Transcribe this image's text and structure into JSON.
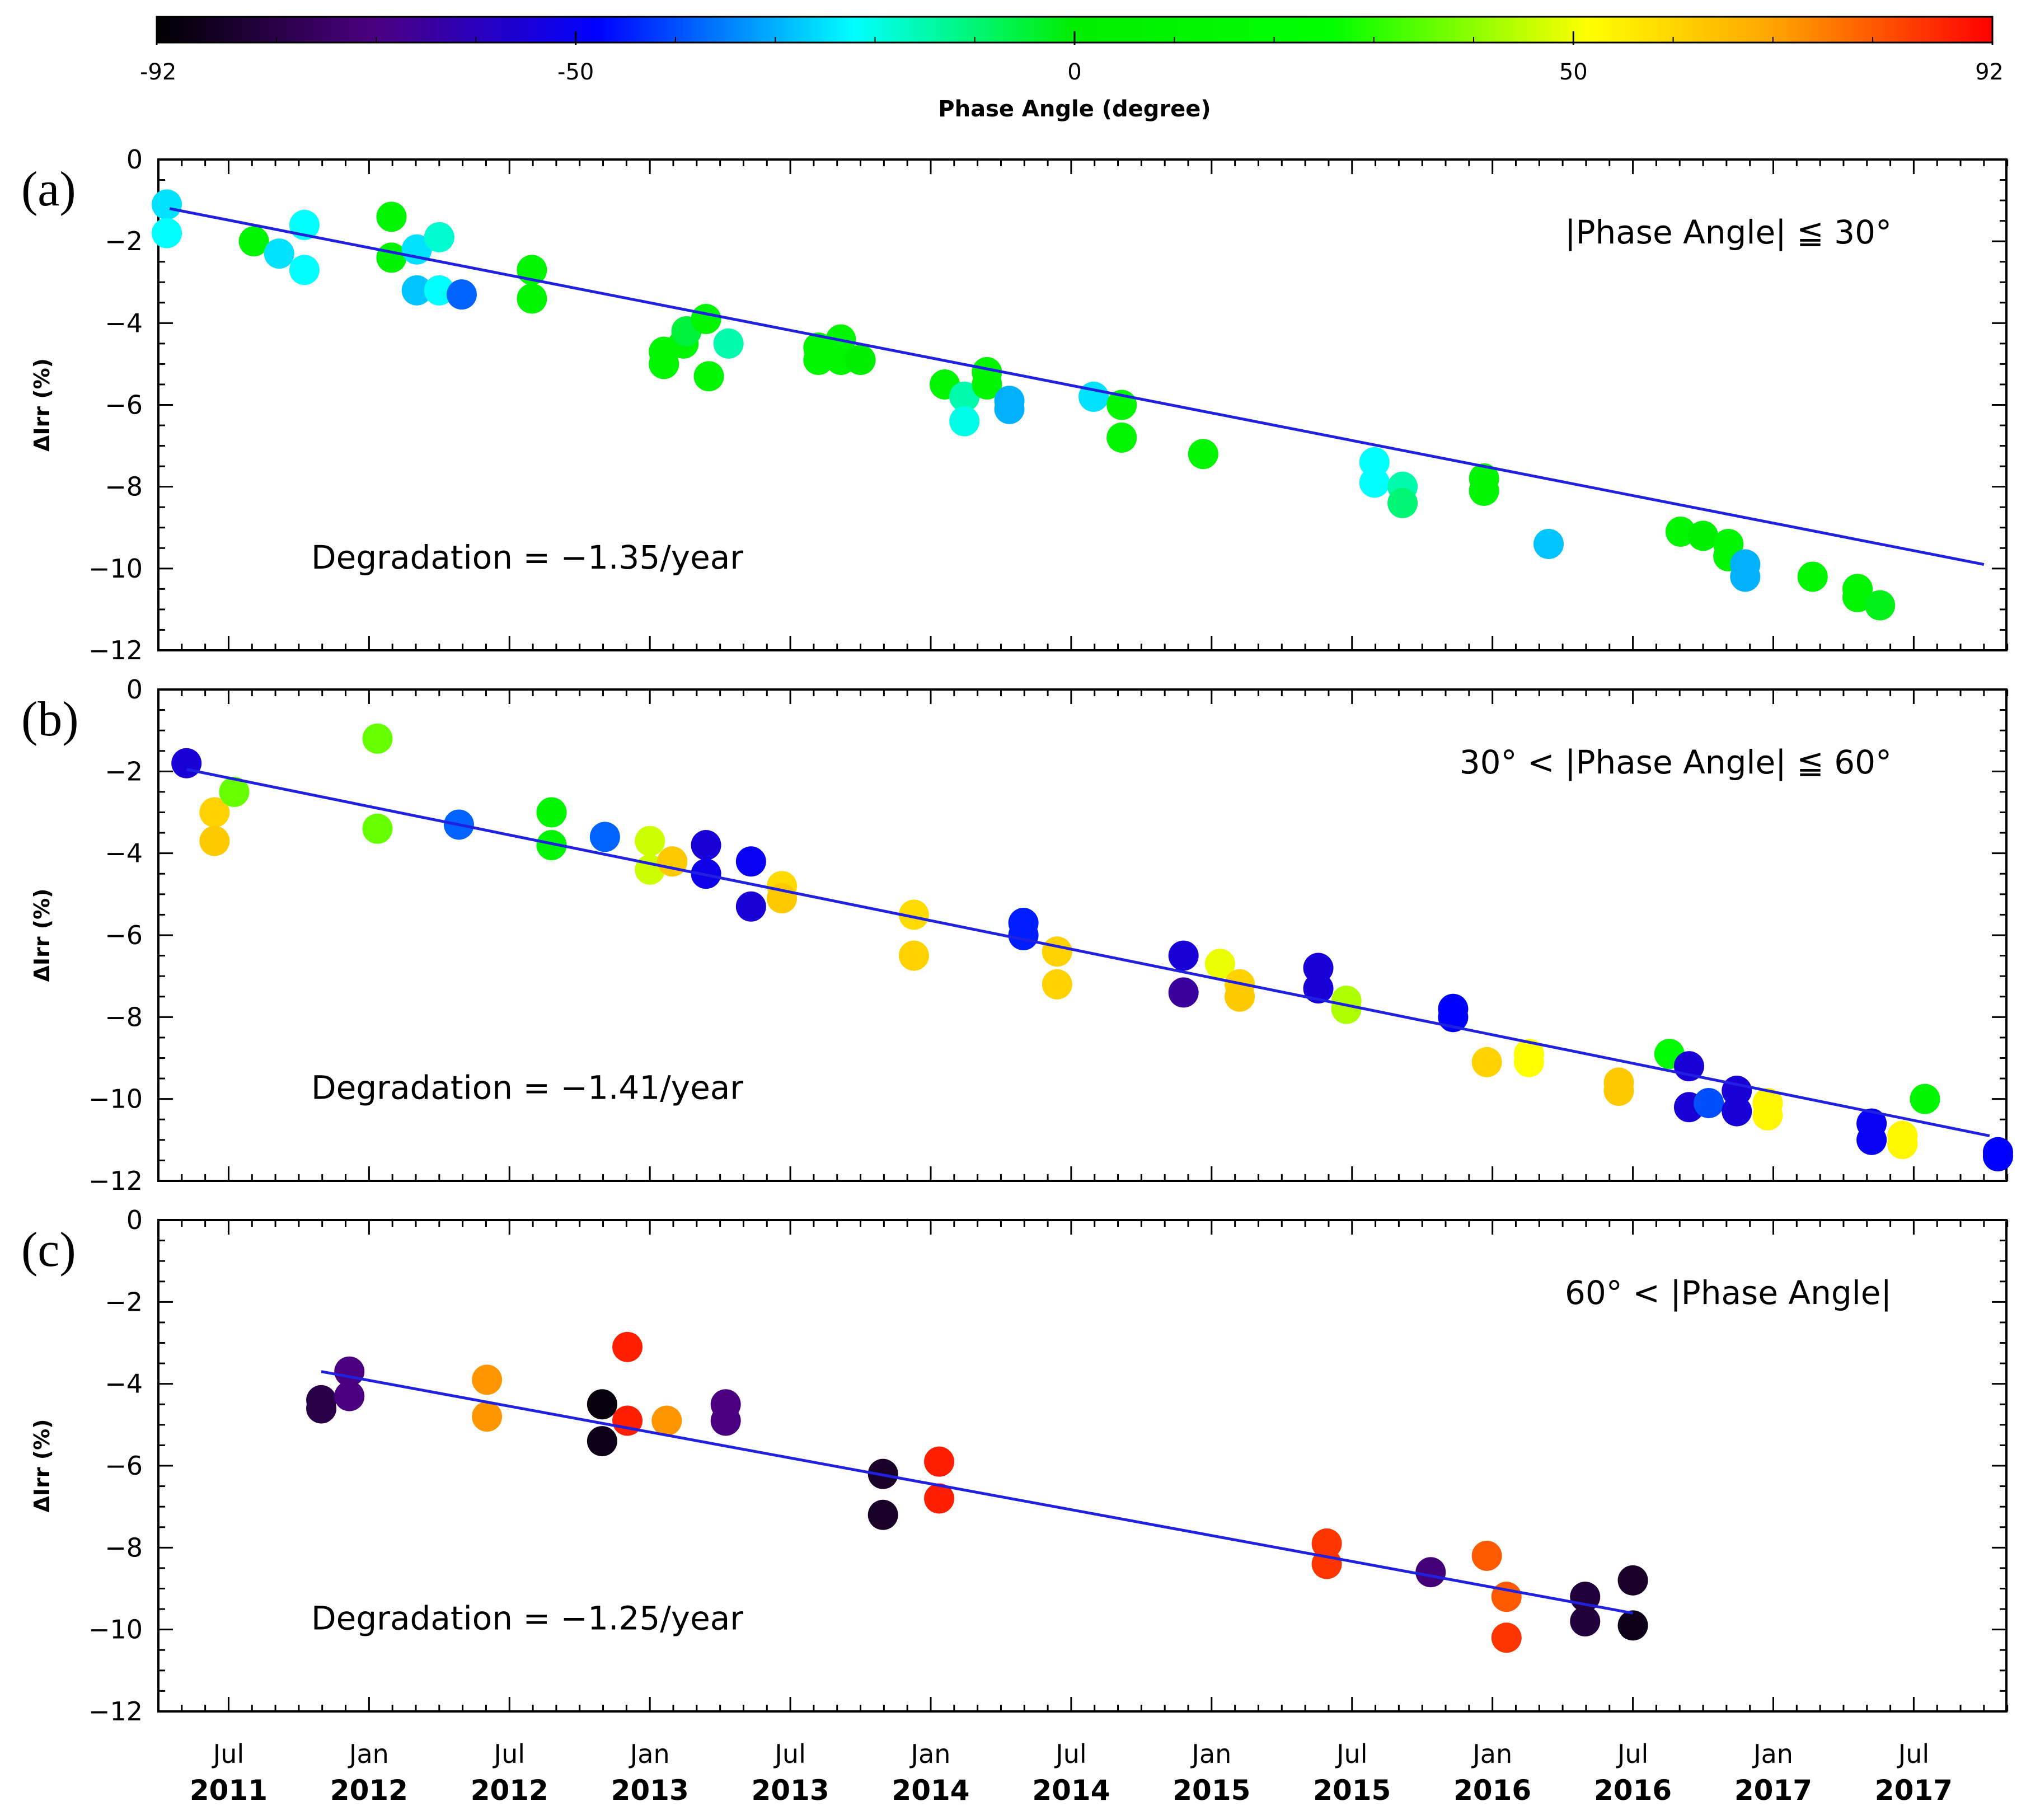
{
  "colorbar": {
    "label": "Phase Angle (degree)",
    "ticks": [
      "-92",
      "-50",
      "0",
      "50",
      "92"
    ],
    "tick_values": [
      -92,
      -50,
      0,
      50,
      92
    ],
    "range": [
      -92,
      92
    ]
  },
  "x_axis": {
    "tick_labels": [
      {
        "month": "Jul",
        "year": "2011",
        "t": 2011.5
      },
      {
        "month": "Jan",
        "year": "2012",
        "t": 2012.0
      },
      {
        "month": "Jul",
        "year": "2012",
        "t": 2012.5
      },
      {
        "month": "Jan",
        "year": "2013",
        "t": 2013.0
      },
      {
        "month": "Jul",
        "year": "2013",
        "t": 2013.5
      },
      {
        "month": "Jan",
        "year": "2014",
        "t": 2014.0
      },
      {
        "month": "Jul",
        "year": "2014",
        "t": 2014.5
      },
      {
        "month": "Jan",
        "year": "2015",
        "t": 2015.0
      },
      {
        "month": "Jul",
        "year": "2015",
        "t": 2015.5
      },
      {
        "month": "Jan",
        "year": "2016",
        "t": 2016.0
      },
      {
        "month": "Jul",
        "year": "2016",
        "t": 2016.5
      },
      {
        "month": "Jan",
        "year": "2017",
        "t": 2017.0
      },
      {
        "month": "Jul",
        "year": "2017",
        "t": 2017.5
      }
    ],
    "xlim": [
      2011.25,
      2017.83
    ]
  },
  "chart_data": [
    {
      "type": "scatter",
      "panel_label": "(a)",
      "condition": "|Phase Angle| ≦ 30°",
      "ylabel": "ΔIrr (%)",
      "degradation_text": "Degradation = −1.35/year",
      "ylim": [
        -12,
        0
      ],
      "yticks": [
        0,
        -2,
        -4,
        -6,
        -8,
        -10,
        -12
      ],
      "xlim": [
        2011.25,
        2017.83
      ],
      "fit_line": {
        "x": [
          2011.29,
          2017.75
        ],
        "y": [
          -1.2,
          -9.9
        ]
      },
      "points": [
        {
          "x": 2011.28,
          "y": -1.1,
          "phase": -25
        },
        {
          "x": 2011.28,
          "y": -1.8,
          "phase": -22
        },
        {
          "x": 2011.59,
          "y": -2.0,
          "phase": 10
        },
        {
          "x": 2011.68,
          "y": -2.3,
          "phase": -25
        },
        {
          "x": 2011.77,
          "y": -1.6,
          "phase": -22
        },
        {
          "x": 2011.77,
          "y": -2.7,
          "phase": -22
        },
        {
          "x": 2012.08,
          "y": -1.4,
          "phase": 10
        },
        {
          "x": 2012.08,
          "y": -2.4,
          "phase": 8
        },
        {
          "x": 2012.17,
          "y": -2.2,
          "phase": -25
        },
        {
          "x": 2012.17,
          "y": -3.2,
          "phase": -28
        },
        {
          "x": 2012.25,
          "y": -1.9,
          "phase": -18
        },
        {
          "x": 2012.25,
          "y": -3.2,
          "phase": -22
        },
        {
          "x": 2012.33,
          "y": -3.3,
          "phase": -38
        },
        {
          "x": 2012.58,
          "y": -2.7,
          "phase": 10
        },
        {
          "x": 2012.58,
          "y": -3.4,
          "phase": 10
        },
        {
          "x": 2013.05,
          "y": -4.7,
          "phase": 10
        },
        {
          "x": 2013.05,
          "y": -5.0,
          "phase": 12
        },
        {
          "x": 2013.12,
          "y": -4.5,
          "phase": 10
        },
        {
          "x": 2013.13,
          "y": -4.2,
          "phase": -5
        },
        {
          "x": 2013.2,
          "y": -3.9,
          "phase": 10
        },
        {
          "x": 2013.21,
          "y": -5.3,
          "phase": 10
        },
        {
          "x": 2013.28,
          "y": -4.5,
          "phase": -15
        },
        {
          "x": 2013.6,
          "y": -4.6,
          "phase": 10
        },
        {
          "x": 2013.6,
          "y": -4.9,
          "phase": 10
        },
        {
          "x": 2013.68,
          "y": -4.4,
          "phase": 10
        },
        {
          "x": 2013.68,
          "y": -4.9,
          "phase": 10
        },
        {
          "x": 2013.75,
          "y": -4.9,
          "phase": 0
        },
        {
          "x": 2014.05,
          "y": -5.5,
          "phase": 10
        },
        {
          "x": 2014.12,
          "y": -5.8,
          "phase": -15
        },
        {
          "x": 2014.12,
          "y": -6.4,
          "phase": -20
        },
        {
          "x": 2014.2,
          "y": -5.2,
          "phase": 10
        },
        {
          "x": 2014.2,
          "y": -5.5,
          "phase": 10
        },
        {
          "x": 2014.28,
          "y": -5.9,
          "phase": -30
        },
        {
          "x": 2014.28,
          "y": -6.1,
          "phase": -30
        },
        {
          "x": 2014.58,
          "y": -5.8,
          "phase": -25
        },
        {
          "x": 2014.68,
          "y": -6.0,
          "phase": 10
        },
        {
          "x": 2014.68,
          "y": -6.8,
          "phase": 10
        },
        {
          "x": 2014.97,
          "y": -7.2,
          "phase": 10
        },
        {
          "x": 2015.58,
          "y": -7.4,
          "phase": -22
        },
        {
          "x": 2015.58,
          "y": -7.9,
          "phase": -22
        },
        {
          "x": 2015.68,
          "y": -8.0,
          "phase": -15
        },
        {
          "x": 2015.68,
          "y": -8.4,
          "phase": -10
        },
        {
          "x": 2015.97,
          "y": -7.8,
          "phase": 10
        },
        {
          "x": 2015.97,
          "y": -8.1,
          "phase": 10
        },
        {
          "x": 2016.2,
          "y": -9.4,
          "phase": -28
        },
        {
          "x": 2016.67,
          "y": -9.1,
          "phase": 10
        },
        {
          "x": 2016.75,
          "y": -9.2,
          "phase": 0
        },
        {
          "x": 2016.84,
          "y": -9.4,
          "phase": 10
        },
        {
          "x": 2016.84,
          "y": -9.7,
          "phase": 10
        },
        {
          "x": 2016.9,
          "y": -9.9,
          "phase": -30
        },
        {
          "x": 2016.9,
          "y": -10.2,
          "phase": -30
        },
        {
          "x": 2017.14,
          "y": -10.2,
          "phase": 10
        },
        {
          "x": 2017.3,
          "y": -10.5,
          "phase": 10
        },
        {
          "x": 2017.3,
          "y": -10.7,
          "phase": 10
        },
        {
          "x": 2017.38,
          "y": -10.9,
          "phase": -2
        }
      ]
    },
    {
      "type": "scatter",
      "panel_label": "(b)",
      "condition": "30° < |Phase Angle| ≦ 60°",
      "ylabel": "ΔIrr (%)",
      "degradation_text": "Degradation = −1.41/year",
      "ylim": [
        -12,
        0
      ],
      "yticks": [
        0,
        -2,
        -4,
        -6,
        -8,
        -10,
        -12
      ],
      "xlim": [
        2011.25,
        2017.83
      ],
      "fit_line": {
        "x": [
          2011.35,
          2017.77
        ],
        "y": [
          -1.95,
          -10.9
        ]
      },
      "points": [
        {
          "x": 2011.35,
          "y": -1.8,
          "phase": -55
        },
        {
          "x": 2011.45,
          "y": -3.0,
          "phase": 60
        },
        {
          "x": 2011.45,
          "y": -3.7,
          "phase": 62
        },
        {
          "x": 2011.52,
          "y": -2.5,
          "phase": 35
        },
        {
          "x": 2012.03,
          "y": -1.2,
          "phase": 35
        },
        {
          "x": 2012.03,
          "y": -3.4,
          "phase": 35
        },
        {
          "x": 2012.32,
          "y": -3.3,
          "phase": -38
        },
        {
          "x": 2012.65,
          "y": -3.0,
          "phase": 10
        },
        {
          "x": 2012.65,
          "y": -3.8,
          "phase": 10
        },
        {
          "x": 2012.84,
          "y": -3.6,
          "phase": -38
        },
        {
          "x": 2013.0,
          "y": -3.7,
          "phase": 45
        },
        {
          "x": 2013.0,
          "y": -4.4,
          "phase": 45
        },
        {
          "x": 2013.08,
          "y": -4.2,
          "phase": 62
        },
        {
          "x": 2013.2,
          "y": -3.8,
          "phase": -55
        },
        {
          "x": 2013.2,
          "y": -4.5,
          "phase": -52
        },
        {
          "x": 2013.36,
          "y": -4.2,
          "phase": -50
        },
        {
          "x": 2013.36,
          "y": -5.3,
          "phase": -55
        },
        {
          "x": 2013.47,
          "y": -4.8,
          "phase": 58
        },
        {
          "x": 2013.47,
          "y": -5.1,
          "phase": 62
        },
        {
          "x": 2013.94,
          "y": -5.5,
          "phase": 58
        },
        {
          "x": 2013.94,
          "y": -6.5,
          "phase": 60
        },
        {
          "x": 2014.33,
          "y": -5.7,
          "phase": -45
        },
        {
          "x": 2014.33,
          "y": -6.0,
          "phase": -45
        },
        {
          "x": 2014.45,
          "y": -6.4,
          "phase": 60
        },
        {
          "x": 2014.45,
          "y": -7.2,
          "phase": 60
        },
        {
          "x": 2014.9,
          "y": -6.5,
          "phase": -55
        },
        {
          "x": 2014.9,
          "y": -7.4,
          "phase": -65
        },
        {
          "x": 2015.03,
          "y": -6.7,
          "phase": 48
        },
        {
          "x": 2015.1,
          "y": -7.2,
          "phase": 60
        },
        {
          "x": 2015.1,
          "y": -7.5,
          "phase": 62
        },
        {
          "x": 2015.38,
          "y": -6.8,
          "phase": -55
        },
        {
          "x": 2015.38,
          "y": -7.3,
          "phase": -55
        },
        {
          "x": 2015.48,
          "y": -7.6,
          "phase": 42
        },
        {
          "x": 2015.48,
          "y": -7.8,
          "phase": 42
        },
        {
          "x": 2015.86,
          "y": -7.8,
          "phase": -48
        },
        {
          "x": 2015.86,
          "y": -8.0,
          "phase": -48
        },
        {
          "x": 2015.98,
          "y": -9.1,
          "phase": 60
        },
        {
          "x": 2016.13,
          "y": -8.9,
          "phase": 50
        },
        {
          "x": 2016.13,
          "y": -9.1,
          "phase": 50
        },
        {
          "x": 2016.45,
          "y": -9.6,
          "phase": 62
        },
        {
          "x": 2016.45,
          "y": -9.8,
          "phase": 62
        },
        {
          "x": 2016.63,
          "y": -8.9,
          "phase": 20
        },
        {
          "x": 2016.7,
          "y": -9.2,
          "phase": -55
        },
        {
          "x": 2016.7,
          "y": -10.2,
          "phase": -55
        },
        {
          "x": 2016.77,
          "y": -10.1,
          "phase": -40
        },
        {
          "x": 2016.87,
          "y": -9.8,
          "phase": -55
        },
        {
          "x": 2016.87,
          "y": -10.3,
          "phase": -55
        },
        {
          "x": 2016.98,
          "y": -10.1,
          "phase": 52
        },
        {
          "x": 2016.98,
          "y": -10.4,
          "phase": 52
        },
        {
          "x": 2017.35,
          "y": -10.6,
          "phase": -50
        },
        {
          "x": 2017.35,
          "y": -11.0,
          "phase": -50
        },
        {
          "x": 2017.46,
          "y": -10.9,
          "phase": 52
        },
        {
          "x": 2017.46,
          "y": -11.1,
          "phase": 52
        },
        {
          "x": 2017.54,
          "y": -10.0,
          "phase": 10
        },
        {
          "x": 2017.8,
          "y": -11.3,
          "phase": -48
        },
        {
          "x": 2017.8,
          "y": -11.4,
          "phase": -48
        }
      ]
    },
    {
      "type": "scatter",
      "panel_label": "(c)",
      "condition": "60° < |Phase Angle|",
      "ylabel": "ΔIrr (%)",
      "degradation_text": "Degradation = −1.25/year",
      "ylim": [
        -12,
        0
      ],
      "yticks": [
        0,
        -2,
        -4,
        -6,
        -8,
        -10,
        -12
      ],
      "xlim": [
        2011.25,
        2017.83
      ],
      "fit_line": {
        "x": [
          2011.83,
          2016.5
        ],
        "y": [
          -3.7,
          -9.6
        ]
      },
      "points": [
        {
          "x": 2011.83,
          "y": -4.4,
          "phase": -80
        },
        {
          "x": 2011.83,
          "y": -4.6,
          "phase": -80
        },
        {
          "x": 2011.93,
          "y": -3.7,
          "phase": -70
        },
        {
          "x": 2011.93,
          "y": -4.3,
          "phase": -70
        },
        {
          "x": 2012.42,
          "y": -3.9,
          "phase": 72
        },
        {
          "x": 2012.42,
          "y": -4.8,
          "phase": 72
        },
        {
          "x": 2012.83,
          "y": -4.5,
          "phase": -90
        },
        {
          "x": 2012.83,
          "y": -5.4,
          "phase": -88
        },
        {
          "x": 2012.92,
          "y": -3.1,
          "phase": 88
        },
        {
          "x": 2012.92,
          "y": -4.9,
          "phase": 88
        },
        {
          "x": 2013.06,
          "y": -4.9,
          "phase": 72
        },
        {
          "x": 2013.27,
          "y": -4.5,
          "phase": -70
        },
        {
          "x": 2013.27,
          "y": -4.9,
          "phase": -70
        },
        {
          "x": 2013.83,
          "y": -6.2,
          "phase": -85
        },
        {
          "x": 2013.83,
          "y": -7.2,
          "phase": -85
        },
        {
          "x": 2014.03,
          "y": -5.9,
          "phase": 88
        },
        {
          "x": 2014.03,
          "y": -6.8,
          "phase": 88
        },
        {
          "x": 2015.41,
          "y": -7.9,
          "phase": 85
        },
        {
          "x": 2015.41,
          "y": -8.4,
          "phase": 85
        },
        {
          "x": 2015.78,
          "y": -8.6,
          "phase": -72
        },
        {
          "x": 2015.98,
          "y": -8.2,
          "phase": 80
        },
        {
          "x": 2016.05,
          "y": -9.2,
          "phase": 80
        },
        {
          "x": 2016.05,
          "y": -10.2,
          "phase": 85
        },
        {
          "x": 2016.33,
          "y": -9.2,
          "phase": -82
        },
        {
          "x": 2016.33,
          "y": -9.8,
          "phase": -82
        },
        {
          "x": 2016.5,
          "y": -8.8,
          "phase": -85
        },
        {
          "x": 2016.5,
          "y": -9.9,
          "phase": -88
        }
      ]
    }
  ]
}
